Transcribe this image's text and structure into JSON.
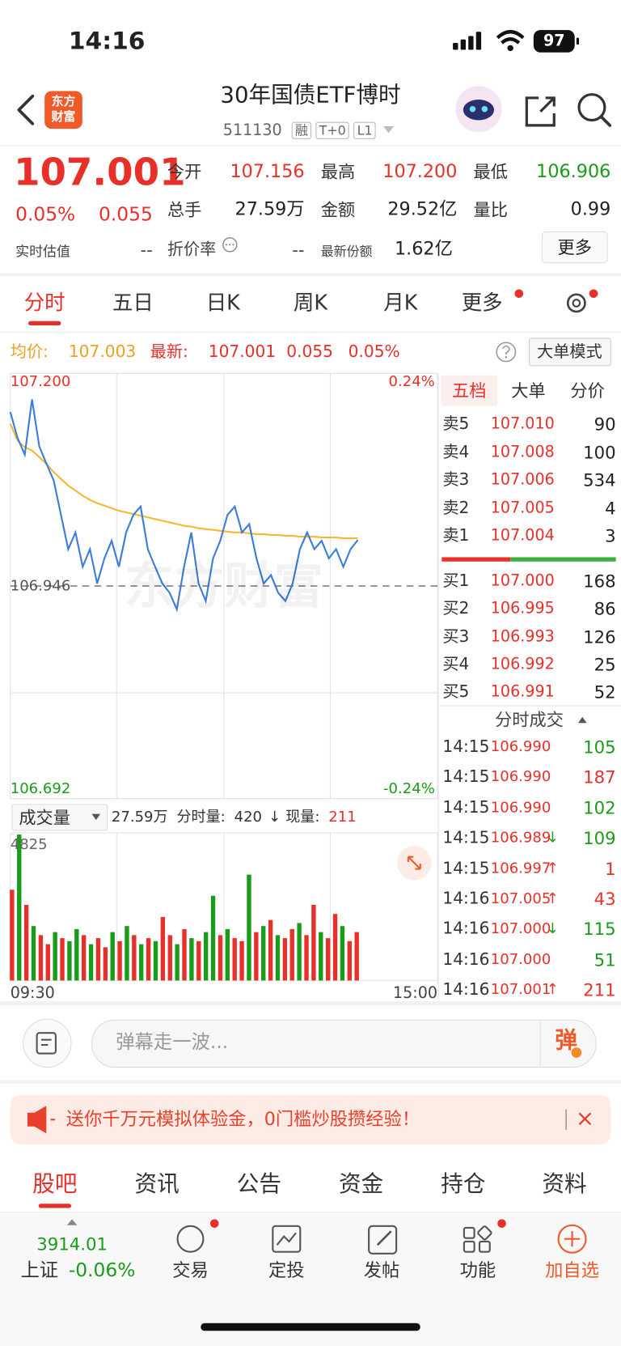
{
  "status_bar": {
    "time": "14:16",
    "battery": "97"
  },
  "header": {
    "logo": [
      "东方",
      "财富"
    ],
    "title": "30年国债ETF博时",
    "code": "511130",
    "tags": [
      "融",
      "T+0",
      "L1"
    ]
  },
  "quote": {
    "price": "107.001",
    "change_pct": "0.05%",
    "change": "0.055",
    "fields": [
      {
        "label": "今开",
        "value": "107.156",
        "color": "#e8302a"
      },
      {
        "label": "最高",
        "value": "107.200",
        "color": "#e8302a"
      },
      {
        "label": "最低",
        "value": "106.906",
        "color": "#1a9c1a"
      },
      {
        "label": "总手",
        "value": "27.59万",
        "color": "#222222"
      },
      {
        "label": "金额",
        "value": "29.52亿",
        "color": "#222222"
      },
      {
        "label": "量比",
        "value": "0.99",
        "color": "#222222"
      }
    ],
    "estimate_label": "实时估值",
    "estimate": "--",
    "discount_label": "折价率",
    "discount": "--",
    "shares_label": "最新份额",
    "shares": "1.62亿",
    "more": "更多"
  },
  "tabs": {
    "items": [
      "分时",
      "五日",
      "日K",
      "周K",
      "月K",
      "更多"
    ],
    "active": 0
  },
  "chart_info": {
    "avg_label": "均价:",
    "avg": "107.003",
    "latest_label": "最新:",
    "latest": "107.001",
    "change": "0.055",
    "change_pct": "0.05%",
    "mode": "大单模式"
  },
  "watermark": "东方财富",
  "chart_data": [
    {
      "type": "line",
      "categories": [
        "09:30",
        null,
        null,
        null,
        null,
        null,
        null,
        null,
        null,
        null,
        null,
        null,
        null,
        null,
        null,
        null,
        null,
        null,
        null,
        null,
        null,
        null,
        null,
        null,
        null,
        null,
        null,
        null,
        null,
        null,
        null,
        null,
        null,
        null,
        null,
        null,
        null,
        null,
        null,
        null,
        null,
        null,
        null,
        null,
        null,
        null,
        null,
        null,
        null,
        null,
        null,
        null,
        null,
        null,
        null,
        null,
        null,
        null,
        null,
        "15:00"
      ],
      "ylim": [
        106.692,
        107.2
      ],
      "yticks": [
        {
          "value": 107.2,
          "label": "107.200"
        },
        {
          "value": 106.692,
          "label": "106.692"
        }
      ],
      "baseline": {
        "value": 106.946,
        "label": "106.946"
      },
      "y2lim": [
        -0.24,
        0.24
      ],
      "y2ticks": [
        {
          "value": 0.24,
          "label": "0.24%"
        },
        {
          "value": -0.24,
          "label": "-0.24%"
        }
      ],
      "series": [
        {
          "name": "最新",
          "color": "#3b7dd8",
          "values": [
            107.154,
            107.123,
            107.103,
            107.169,
            107.113,
            107.092,
            107.072,
            107.031,
            106.99,
            107.01,
            106.969,
            106.99,
            106.949,
            106.979,
            107.0,
            106.969,
            107.01,
            107.031,
            107.041,
            106.99,
            106.969,
            106.949,
            106.938,
            106.918,
            106.969,
            107.01,
            106.949,
            106.928,
            106.979,
            107.0,
            107.031,
            107.041,
            107.01,
            107.02,
            106.979,
            106.949,
            106.959,
            106.938,
            106.928,
            106.949,
            106.99,
            107.01,
            106.99,
            107.0,
            106.979,
            106.99,
            106.969,
            106.99,
            107.001,
            null,
            null,
            null,
            null,
            null,
            null,
            null,
            null,
            null,
            null,
            null
          ]
        },
        {
          "name": "均价",
          "color": "#f5b833",
          "values": [
            107.14,
            107.12,
            107.112,
            107.108,
            107.1,
            107.092,
            107.082,
            107.074,
            107.066,
            107.06,
            107.054,
            107.049,
            107.045,
            107.042,
            107.039,
            107.036,
            107.034,
            107.032,
            107.03,
            107.028,
            107.026,
            107.024,
            107.022,
            107.02,
            107.018,
            107.017,
            107.015,
            107.014,
            107.013,
            107.012,
            107.011,
            107.01,
            107.01,
            107.009,
            107.008,
            107.008,
            107.007,
            107.007,
            107.006,
            107.006,
            107.005,
            107.005,
            107.005,
            107.004,
            107.004,
            107.004,
            107.003,
            107.003,
            107.003,
            null,
            null,
            null,
            null,
            null,
            null,
            null,
            null,
            null,
            null,
            null
          ]
        }
      ]
    },
    {
      "type": "bar",
      "ylim": [
        0,
        4825
      ],
      "yticks": [
        4825
      ],
      "values": [
        3000,
        4825,
        2500,
        1800,
        1500,
        1200,
        1600,
        1400,
        1300,
        1700,
        1500,
        1200,
        1400,
        1100,
        1600,
        1300,
        1800,
        1500,
        1200,
        1400,
        1300,
        2100,
        1500,
        1200,
        1700,
        1400,
        1300,
        1600,
        2800,
        1500,
        1700,
        1400,
        1300,
        3500,
        1600,
        1800,
        2000,
        1500,
        1400,
        1700,
        1900,
        1500,
        2500,
        1600,
        1400,
        2200,
        1800,
        1300,
        1600,
        null,
        null,
        null,
        null,
        null,
        null,
        null,
        null,
        null,
        null,
        null
      ],
      "colors": [
        "#e8302a",
        "#1a9c1a",
        "#e8302a",
        "#1a9c1a",
        "#e8302a",
        "#e8302a",
        "#1a9c1a",
        "#e8302a",
        "#1a9c1a",
        "#1a9c1a",
        "#e8302a",
        "#1a9c1a",
        "#e8302a",
        "#e8302a",
        "#1a9c1a",
        "#e8302a",
        "#1a9c1a",
        "#e8302a",
        "#1a9c1a",
        "#e8302a",
        "#1a9c1a",
        "#e8302a",
        "#e8302a",
        "#1a9c1a",
        "#e8302a",
        "#1a9c1a",
        "#e8302a",
        "#1a9c1a",
        "#1a9c1a",
        "#e8302a",
        "#1a9c1a",
        "#e8302a",
        "#e8302a",
        "#1a9c1a",
        "#e8302a",
        "#1a9c1a",
        "#e8302a",
        "#1a9c1a",
        "#e8302a",
        "#e8302a",
        "#1a9c1a",
        "#e8302a",
        "#e8302a",
        "#1a9c1a",
        "#e8302a",
        "#e8302a",
        "#1a9c1a",
        "#e8302a",
        "#e8302a",
        null,
        null,
        null,
        null,
        null,
        null,
        null,
        null,
        null,
        null,
        null
      ]
    }
  ],
  "volume_info": {
    "selector": "成交量",
    "total": "27.59万",
    "minute_label": "分时量:",
    "minute": "420",
    "arrow": "↓",
    "current_label": "现量:",
    "current": "211"
  },
  "order_book": {
    "tabs": [
      "五档",
      "大单",
      "分价"
    ],
    "active": 0,
    "asks": [
      {
        "label": "卖5",
        "price": "107.010",
        "volume": "90"
      },
      {
        "label": "卖4",
        "price": "107.008",
        "volume": "100"
      },
      {
        "label": "卖3",
        "price": "107.006",
        "volume": "534"
      },
      {
        "label": "卖2",
        "price": "107.005",
        "volume": "4"
      },
      {
        "label": "卖1",
        "price": "107.004",
        "volume": "3"
      }
    ],
    "bids": [
      {
        "label": "买1",
        "price": "107.000",
        "volume": "168"
      },
      {
        "label": "买2",
        "price": "106.995",
        "volume": "86"
      },
      {
        "label": "买3",
        "price": "106.993",
        "volume": "126"
      },
      {
        "label": "买4",
        "price": "106.992",
        "volume": "25"
      },
      {
        "label": "买5",
        "price": "106.991",
        "volume": "52"
      }
    ]
  },
  "trades": {
    "title": "分时成交",
    "rows": [
      {
        "time": "14:15",
        "price": "106.990",
        "volume": "105",
        "color": "#1a9c1a"
      },
      {
        "time": "14:15",
        "price": "106.990",
        "volume": "187",
        "color": "#e8302a"
      },
      {
        "time": "14:15",
        "price": "106.990",
        "volume": "102",
        "color": "#1a9c1a"
      },
      {
        "time": "14:15",
        "price": "106.989",
        "arrow": "↓",
        "arrow_color": "#1a9c1a",
        "volume": "109",
        "color": "#1a9c1a"
      },
      {
        "time": "14:15",
        "price": "106.997",
        "arrow": "↑",
        "arrow_color": "#e8302a",
        "volume": "1",
        "color": "#e8302a"
      },
      {
        "time": "14:16",
        "price": "107.005",
        "arrow": "↑",
        "arrow_color": "#e8302a",
        "volume": "43",
        "color": "#e8302a"
      },
      {
        "time": "14:16",
        "price": "107.000",
        "arrow": "↓",
        "arrow_color": "#1a9c1a",
        "volume": "115",
        "color": "#1a9c1a"
      },
      {
        "time": "14:16",
        "price": "107.000",
        "volume": "51",
        "color": "#1a9c1a"
      },
      {
        "time": "14:16",
        "price": "107.001",
        "arrow": "↑",
        "arrow_color": "#e8302a",
        "volume": "211",
        "color": "#e8302a"
      }
    ]
  },
  "comment": {
    "placeholder": "弹幕走一波...",
    "button": "弹"
  },
  "banner": {
    "text": "送你千万元模拟体验金，0门槛炒股攒经验！",
    "close": "×"
  },
  "section_tabs": {
    "items": [
      "股吧",
      "资讯",
      "公告",
      "资金",
      "持仓",
      "资料"
    ],
    "active": 0
  },
  "index": {
    "value": "3914.01",
    "name": "上证",
    "change": "-0.06%"
  },
  "nav": [
    {
      "label": "交易",
      "dot": true
    },
    {
      "label": "定投",
      "dot": false
    },
    {
      "label": "发帖",
      "dot": false
    },
    {
      "label": "功能",
      "dot": true
    },
    {
      "label": "加自选",
      "dot": false
    }
  ]
}
